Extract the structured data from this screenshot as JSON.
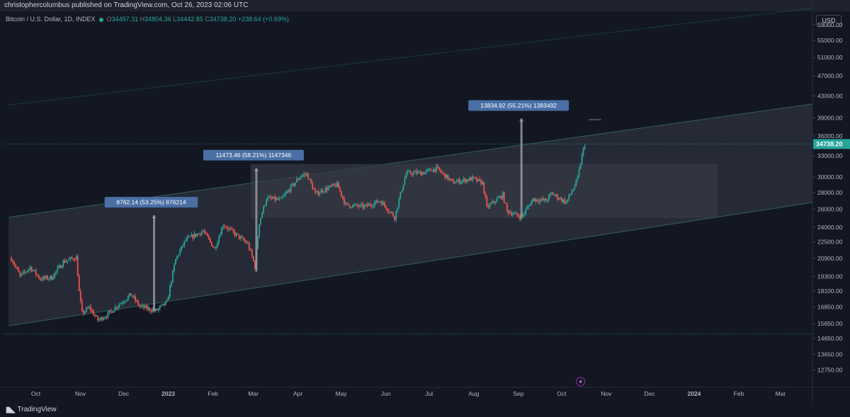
{
  "header": {
    "publisher_line": "christophercolumbus published on TradingView.com, Oct 26, 2023 02:06 UTC"
  },
  "legend": {
    "symbol": "Bitcoin / U.S. Dollar, 1D, INDEX",
    "open_label": "O",
    "open": "34497.31",
    "high_label": "H",
    "high": "34804.36",
    "low_label": "L",
    "low": "34442.85",
    "close_label": "C",
    "close": "34738.20",
    "change": "+238.64 (+0.69%)"
  },
  "currency_button": "USD",
  "footer": {
    "brand": "TradingView"
  },
  "colors": {
    "background": "#131722",
    "up_candle": "#26a69a",
    "down_candle": "#ef5350",
    "channel_fill": "#2a2e39",
    "range_box": "#363a45",
    "annotation_bg": "#4a6fa5",
    "price_tag": "#26a69a"
  },
  "chart_data": {
    "type": "candlestick",
    "instrument": "Bitcoin / U.S. Dollar, 1D, INDEX",
    "y_scale": "log",
    "ylim": [
      11800,
      63000
    ],
    "y_ticks": [
      "59000.00",
      "55000.00",
      "51000.00",
      "47000.00",
      "43000.00",
      "39000.00",
      "36000.00",
      "33000.00",
      "30000.00",
      "28000.00",
      "26000.00",
      "24000.00",
      "22500.00",
      "20900.00",
      "19300.00",
      "18100.00",
      "16850.00",
      "15650.00",
      "14650.00",
      "13650.00",
      "12750.00"
    ],
    "x_ticks": [
      "Oct",
      "Nov",
      "Dec",
      "2023",
      "Feb",
      "Mar",
      "Apr",
      "May",
      "Jun",
      "Jul",
      "Aug",
      "Sep",
      "Oct",
      "Nov",
      "Dec",
      "2024",
      "Feb",
      "Mar"
    ],
    "last_price": "34738.20",
    "price_path": [
      [
        "2022-09-22",
        20900
      ],
      [
        "2022-09-28",
        19300
      ],
      [
        "2022-10-05",
        20100
      ],
      [
        "2022-10-12",
        19100
      ],
      [
        "2022-10-20",
        19200
      ],
      [
        "2022-10-28",
        20600
      ],
      [
        "2022-11-06",
        21000
      ],
      [
        "2022-11-08",
        18000
      ],
      [
        "2022-11-10",
        16400
      ],
      [
        "2022-11-15",
        16800
      ],
      [
        "2022-11-21",
        15900
      ],
      [
        "2022-11-28",
        16300
      ],
      [
        "2022-12-05",
        17000
      ],
      [
        "2022-12-14",
        17800
      ],
      [
        "2022-12-20",
        16900
      ],
      [
        "2022-12-31",
        16550
      ],
      [
        "2023-01-08",
        17200
      ],
      [
        "2023-01-14",
        20800
      ],
      [
        "2023-01-21",
        22700
      ],
      [
        "2023-02-02",
        23600
      ],
      [
        "2023-02-10",
        21800
      ],
      [
        "2023-02-16",
        24300
      ],
      [
        "2023-02-25",
        23200
      ],
      [
        "2023-03-05",
        22300
      ],
      [
        "2023-03-10",
        20200
      ],
      [
        "2023-03-13",
        24500
      ],
      [
        "2023-03-18",
        27300
      ],
      [
        "2023-03-28",
        27100
      ],
      [
        "2023-04-11",
        30200
      ],
      [
        "2023-04-15",
        30400
      ],
      [
        "2023-04-21",
        27800
      ],
      [
        "2023-04-26",
        28300
      ],
      [
        "2023-05-06",
        29000
      ],
      [
        "2023-05-12",
        26500
      ],
      [
        "2023-05-25",
        26300
      ],
      [
        "2023-06-05",
        27000
      ],
      [
        "2023-06-15",
        25100
      ],
      [
        "2023-06-23",
        30500
      ],
      [
        "2023-07-05",
        30600
      ],
      [
        "2023-07-14",
        31200
      ],
      [
        "2023-07-25",
        29300
      ],
      [
        "2023-08-08",
        29800
      ],
      [
        "2023-08-15",
        29200
      ],
      [
        "2023-08-18",
        26200
      ],
      [
        "2023-08-29",
        27700
      ],
      [
        "2023-09-01",
        25800
      ],
      [
        "2023-09-11",
        25100
      ],
      [
        "2023-09-19",
        27200
      ],
      [
        "2023-09-28",
        27000
      ],
      [
        "2023-10-02",
        27900
      ],
      [
        "2023-10-12",
        26800
      ],
      [
        "2023-10-17",
        28500
      ],
      [
        "2023-10-20",
        29800
      ],
      [
        "2023-10-23",
        33000
      ],
      [
        "2023-10-25",
        34738
      ]
    ],
    "annotations": [
      {
        "date": "2022-12-30",
        "from": 16550,
        "to": 25312,
        "label": "8762.14 (53.25%) 876214"
      },
      {
        "date": "2023-03-11",
        "from": 19720,
        "to": 31193,
        "label": "11473.46 (58.21%) 1147346"
      },
      {
        "date": "2023-09-11",
        "from": 25060,
        "to": 38895,
        "label": "13834.92 (55.21%) 1383492"
      }
    ],
    "range_box": {
      "x0": "2023-03-07",
      "x1": "2024-01-25",
      "y_low": 25000,
      "y_high": 31800
    },
    "channel": {
      "upper": [
        [
          "2022-09-20",
          25100
        ],
        [
          "2024-03-31",
          41500
        ]
      ],
      "lower": [
        [
          "2022-09-20",
          15500
        ],
        [
          "2024-03-31",
          26800
        ]
      ]
    },
    "upper_dotted_line": [
      [
        "2022-09-20",
        41300
      ],
      [
        "2024-03-31",
        63500
      ]
    ],
    "horizontal_dotted_lines": [
      14950,
      34738.2
    ],
    "short_dotted_segment": {
      "x0": "2023-10-28",
      "x1": "2023-11-05",
      "y": 38700
    }
  }
}
